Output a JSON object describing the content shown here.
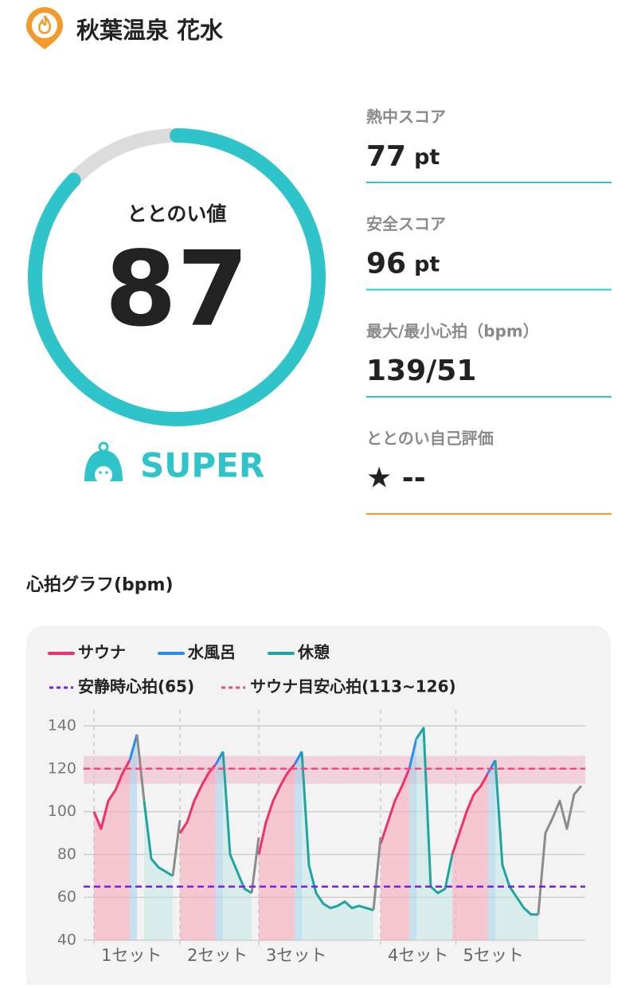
{
  "header": {
    "title": "秋葉温泉 花水"
  },
  "score": {
    "label": "ととのい値",
    "value": 87,
    "range": [
      0,
      100
    ],
    "color": "#2ec4c9",
    "rank": "SUPER"
  },
  "stats": [
    {
      "label": "熱中スコア",
      "value": 77,
      "unit": "pt"
    },
    {
      "label": "安全スコア",
      "value": 96,
      "unit": "pt"
    },
    {
      "label": "最大/最小心拍（bpm）",
      "value": "139/51"
    },
    {
      "label": "ととのい自己評価",
      "value": "★ --"
    }
  ],
  "chart_data": {
    "type": "line",
    "title": "心拍グラフ(bpm)",
    "ylim": [
      40,
      140
    ],
    "yticks": [
      40,
      60,
      80,
      100,
      120,
      140
    ],
    "grid": true,
    "series": [
      {
        "name": "サウナ",
        "color": "#f0306a",
        "fill": "#f4a3b5",
        "values": [
          100,
          92,
          105,
          110,
          118,
          124,
          null,
          null,
          null,
          null,
          null,
          null,
          90,
          95,
          105,
          112,
          118,
          122,
          null,
          null,
          null,
          null,
          null,
          80,
          95,
          105,
          112,
          118,
          122,
          null,
          null,
          null,
          null,
          null,
          null,
          null,
          null,
          null,
          null,
          null,
          85,
          95,
          105,
          112,
          120,
          null,
          null,
          null,
          null,
          null,
          80,
          90,
          100,
          108,
          112,
          118,
          null,
          null,
          null,
          null,
          null,
          null,
          null,
          null,
          null,
          null,
          null,
          null,
          null
        ]
      },
      {
        "name": "水風呂",
        "color": "#2a8cf0",
        "fill": "#9fd0ea",
        "values": [
          null,
          null,
          null,
          null,
          null,
          124,
          136,
          null,
          null,
          null,
          null,
          null,
          null,
          null,
          null,
          null,
          null,
          122,
          128,
          null,
          null,
          null,
          null,
          null,
          null,
          null,
          null,
          null,
          122,
          128,
          null,
          null,
          null,
          null,
          null,
          null,
          null,
          null,
          null,
          null,
          null,
          null,
          null,
          null,
          120,
          134,
          null,
          null,
          null,
          null,
          null,
          null,
          null,
          null,
          null,
          118,
          124,
          null,
          null,
          null,
          null,
          null,
          null,
          null,
          null,
          null,
          null,
          null,
          null
        ]
      },
      {
        "name": "休憩",
        "color": "#1fa5a0",
        "fill": "#bfe6e4",
        "values": [
          null,
          null,
          null,
          null,
          null,
          null,
          null,
          105,
          78,
          74,
          72,
          70,
          null,
          null,
          null,
          null,
          null,
          null,
          128,
          80,
          72,
          64,
          62,
          null,
          null,
          null,
          null,
          null,
          null,
          128,
          75,
          62,
          57,
          55,
          56,
          58,
          55,
          56,
          55,
          54,
          null,
          null,
          null,
          null,
          null,
          134,
          139,
          65,
          62,
          64,
          80,
          null,
          null,
          null,
          null,
          null,
          124,
          75,
          65,
          60,
          55,
          52,
          52,
          null,
          null,
          null,
          null,
          null,
          null
        ]
      },
      {
        "color": "#8c8c8c",
        "values": [
          null,
          null,
          null,
          null,
          null,
          null,
          136,
          105,
          null,
          null,
          null,
          70,
          96,
          null,
          null,
          null,
          null,
          null,
          null,
          null,
          null,
          null,
          62,
          88,
          null,
          null,
          null,
          null,
          null,
          null,
          null,
          null,
          null,
          null,
          null,
          null,
          null,
          null,
          null,
          54,
          88,
          null,
          null,
          null,
          null,
          null,
          null,
          null,
          null,
          null,
          null,
          null,
          null,
          null,
          null,
          null,
          null,
          null,
          null,
          null,
          null,
          null,
          52,
          90,
          97,
          105,
          92,
          108,
          112
        ]
      }
    ],
    "reference_lines": [
      {
        "name": "安静時心拍(65)",
        "value": 65,
        "color": "#7b1cf5"
      }
    ],
    "reference_band": {
      "name": "サウナ目安心拍(113~126)",
      "range": [
        113,
        126
      ],
      "line": 120,
      "color": "#ea4c7c"
    },
    "sets": [
      {
        "label": "1セット",
        "x": 0
      },
      {
        "label": "2セット",
        "x": 12
      },
      {
        "label": "3セット",
        "x": 23
      },
      {
        "label": "4セット",
        "x": 40
      },
      {
        "label": "5セット",
        "x": 50.5
      }
    ]
  }
}
